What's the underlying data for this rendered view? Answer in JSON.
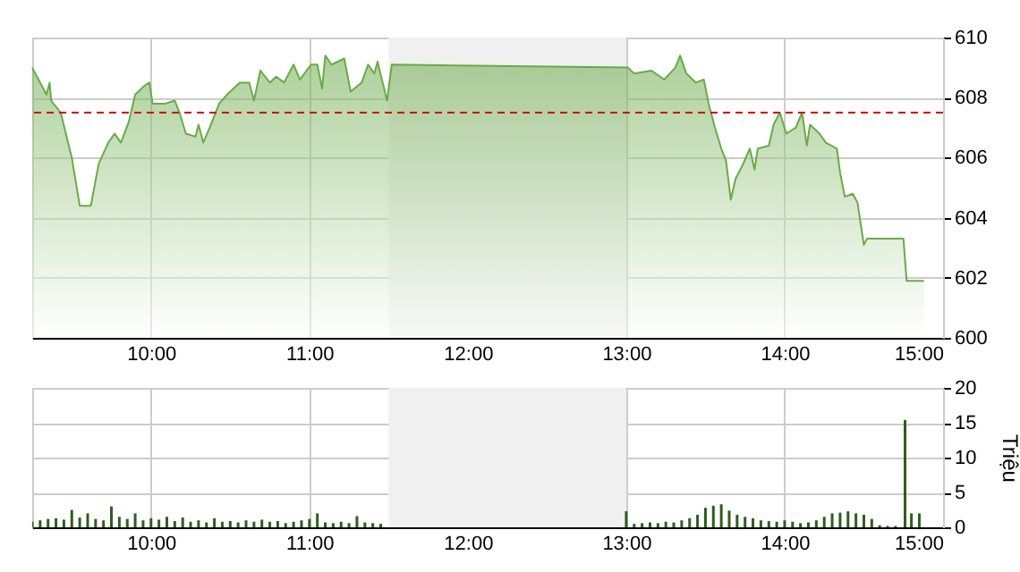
{
  "chart_data": [
    {
      "type": "area",
      "xlim": [
        9.25,
        15
      ],
      "xticks": [
        {
          "value": 10,
          "label": "10:00"
        },
        {
          "value": 11,
          "label": "11:00"
        },
        {
          "value": 12,
          "label": "12:00"
        },
        {
          "value": 13,
          "label": "13:00"
        },
        {
          "value": 14,
          "label": "14:00"
        },
        {
          "value": 15,
          "label": "15:00"
        }
      ],
      "ylim": [
        600,
        610
      ],
      "yticks": [
        600,
        602,
        604,
        606,
        608,
        610
      ],
      "grid": true,
      "x": [
        9.25,
        9.34,
        9.36,
        9.37,
        9.43,
        9.5,
        9.55,
        9.62,
        9.67,
        9.73,
        9.77,
        9.81,
        9.86,
        9.9,
        9.96,
        9.99,
        10.01,
        10.09,
        10.15,
        10.18,
        10.22,
        10.28,
        10.3,
        10.33,
        10.37,
        10.43,
        10.48,
        10.56,
        10.62,
        10.65,
        10.69,
        10.75,
        10.79,
        10.84,
        10.9,
        10.94,
        11.01,
        11.05,
        11.08,
        11.1,
        11.14,
        11.22,
        11.26,
        11.33,
        11.37,
        11.41,
        11.43,
        11.49,
        11.52,
        13.01,
        13.05,
        13.16,
        13.24,
        13.31,
        13.34,
        13.38,
        13.44,
        13.49,
        13.52,
        13.56,
        13.6,
        13.63,
        13.66,
        13.69,
        13.73,
        13.78,
        13.81,
        13.83,
        13.9,
        13.93,
        13.97,
        14.01,
        14.07,
        14.11,
        14.14,
        14.16,
        14.22,
        14.26,
        14.33,
        14.35,
        14.38,
        14.43,
        14.46,
        14.5,
        14.52,
        14.75,
        14.77,
        14.88
      ],
      "series": [
        {
          "color": "#6aaa48",
          "values": [
            609.0,
            608.1,
            608.5,
            607.9,
            607.5,
            606.0,
            604.4,
            604.4,
            605.8,
            606.5,
            606.8,
            606.5,
            607.2,
            608.1,
            608.4,
            608.5,
            607.8,
            607.8,
            607.9,
            607.5,
            606.8,
            606.7,
            607.1,
            606.5,
            607.0,
            607.8,
            608.1,
            608.5,
            608.5,
            607.9,
            608.9,
            608.5,
            608.7,
            608.5,
            609.1,
            608.6,
            609.1,
            609.1,
            608.3,
            609.4,
            609.1,
            609.3,
            608.2,
            608.5,
            609.1,
            608.8,
            609.2,
            607.9,
            609.1,
            609.0,
            608.8,
            608.9,
            608.6,
            609.0,
            609.4,
            608.8,
            608.5,
            608.6,
            607.8,
            607.0,
            606.3,
            605.9,
            604.6,
            605.3,
            605.7,
            606.3,
            605.6,
            606.3,
            606.4,
            607.1,
            607.5,
            606.8,
            607.0,
            607.5,
            606.4,
            607.1,
            606.8,
            606.5,
            606.3,
            605.5,
            604.7,
            604.8,
            604.5,
            603.1,
            603.3,
            603.3,
            601.9,
            601.9
          ]
        }
      ],
      "ref_lines": [
        {
          "axis": "y",
          "value": 607.5,
          "color": "#cc0000",
          "line_style": "dashed"
        }
      ],
      "bands": [
        {
          "axis": "x",
          "from": 11.5,
          "to": 13,
          "color": "#f0f0f0"
        }
      ]
    },
    {
      "type": "bar",
      "xlim": [
        9.25,
        15
      ],
      "xticks": [
        {
          "value": 10,
          "label": "10:00"
        },
        {
          "value": 11,
          "label": "11:00"
        },
        {
          "value": 12,
          "label": "12:00"
        },
        {
          "value": 13,
          "label": "13:00"
        },
        {
          "value": 14,
          "label": "14:00"
        },
        {
          "value": 15,
          "label": "15:00"
        }
      ],
      "ylabel": "Triệu",
      "ylim": [
        0,
        20
      ],
      "yticks": [
        0,
        5,
        10,
        15,
        20
      ],
      "grid": true,
      "x": [
        9.25,
        9.3,
        9.35,
        9.4,
        9.45,
        9.5,
        9.55,
        9.6,
        9.65,
        9.7,
        9.75,
        9.8,
        9.85,
        9.9,
        9.95,
        10.0,
        10.05,
        10.1,
        10.15,
        10.2,
        10.25,
        10.3,
        10.35,
        10.4,
        10.45,
        10.5,
        10.55,
        10.6,
        10.65,
        10.7,
        10.75,
        10.8,
        10.85,
        10.9,
        10.95,
        11.0,
        11.05,
        11.1,
        11.15,
        11.2,
        11.25,
        11.3,
        11.35,
        11.4,
        11.45,
        13.0,
        13.05,
        13.1,
        13.15,
        13.2,
        13.25,
        13.3,
        13.35,
        13.4,
        13.45,
        13.5,
        13.55,
        13.6,
        13.65,
        13.7,
        13.75,
        13.8,
        13.85,
        13.9,
        13.95,
        14.0,
        14.05,
        14.1,
        14.15,
        14.2,
        14.25,
        14.3,
        14.35,
        14.4,
        14.45,
        14.5,
        14.55,
        14.6,
        14.65,
        14.7,
        14.76,
        14.8,
        14.85
      ],
      "series": [
        {
          "color": "#2f5e1e",
          "values": [
            0.8,
            1.0,
            1.2,
            1.3,
            1.1,
            2.5,
            1.4,
            2.0,
            1.2,
            1.0,
            3.0,
            1.5,
            1.2,
            2.0,
            1.0,
            1.3,
            1.1,
            1.5,
            0.9,
            1.4,
            0.8,
            1.0,
            0.7,
            1.3,
            0.8,
            0.9,
            0.7,
            1.0,
            0.8,
            1.1,
            0.8,
            0.9,
            0.6,
            0.8,
            1.0,
            1.2,
            2.0,
            0.7,
            0.6,
            0.8,
            0.6,
            1.6,
            0.7,
            0.6,
            0.5,
            2.3,
            0.5,
            0.6,
            0.7,
            0.6,
            0.8,
            0.7,
            1.0,
            1.3,
            1.8,
            2.8,
            3.1,
            3.3,
            2.4,
            1.8,
            1.5,
            1.3,
            1.0,
            0.9,
            0.8,
            1.0,
            0.8,
            0.6,
            0.7,
            1.0,
            1.5,
            2.0,
            2.1,
            2.3,
            2.0,
            1.8,
            1.2,
            0.3,
            0.2,
            0.2,
            15.4,
            2.0,
            2.0
          ]
        }
      ],
      "bands": [
        {
          "axis": "x",
          "from": 11.5,
          "to": 13,
          "color": "#f0f0f0"
        }
      ]
    }
  ]
}
